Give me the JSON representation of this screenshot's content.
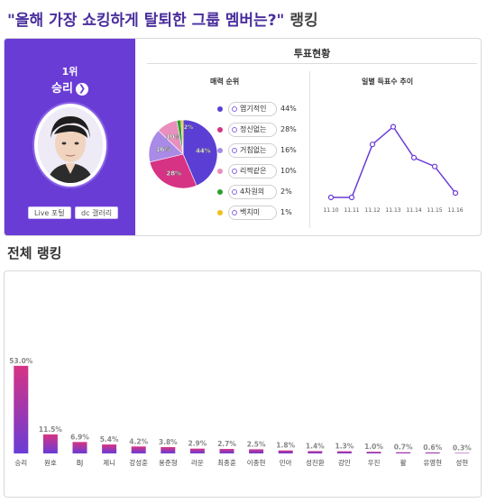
{
  "page": {
    "title": "\"올해 가장 쇼킹하게 탈퇴한 그룹 멤버는?\"",
    "title_suffix": "랭킹"
  },
  "winner": {
    "rank_label": "1위",
    "name": "승리",
    "live_button": "Live 포털",
    "gallery_button": "dc 갤러리"
  },
  "vote_status": {
    "title": "투표현황",
    "charm_title": "매력 순위",
    "daily_title": "일별 득표수 추이"
  },
  "charm": {
    "items": [
      {
        "label": "엽기적인",
        "pct": 44,
        "pct_label": "44%",
        "color": "#5b3fd4"
      },
      {
        "label": "정신없는",
        "pct": 28,
        "pct_label": "28%",
        "color": "#d63384"
      },
      {
        "label": "거침없는",
        "pct": 16,
        "pct_label": "16%",
        "color": "#a98ae6"
      },
      {
        "label": "리짝같은",
        "pct": 10,
        "pct_label": "10%",
        "color": "#e98fbd"
      },
      {
        "label": "4차원의",
        "pct": 2,
        "pct_label": "2%",
        "color": "#2ca02c"
      },
      {
        "label": "백치미",
        "pct": 1,
        "pct_label": "1%",
        "color": "#f2c014"
      }
    ],
    "slice_labels": [
      "44%",
      "28%",
      "16%",
      "10%",
      "2%",
      "1%"
    ]
  },
  "daily": {
    "dates": [
      "11.10",
      "11.11",
      "11.12",
      "11.13",
      "11.14",
      "11.15",
      "11.16"
    ],
    "values": [
      0,
      0,
      60,
      80,
      45,
      35,
      5
    ],
    "ylim": [
      0,
      100
    ]
  },
  "ranking": {
    "title": "전체 랭킹",
    "gradient_top": "#d63384",
    "gradient_bottom": "#6a3cd6"
  },
  "chart_data": {
    "type": "bar",
    "title": "",
    "categories": [
      "승리",
      "원호",
      "BJ",
      "제니",
      "강성훈",
      "용준형",
      "라운",
      "최종훈",
      "이종현",
      "민아",
      "성진환",
      "강인",
      "우진",
      "활",
      "유영현",
      "성현"
    ],
    "values": [
      53.0,
      11.5,
      6.9,
      5.4,
      4.2,
      3.8,
      2.9,
      2.7,
      2.5,
      1.8,
      1.4,
      1.3,
      1.0,
      0.7,
      0.6,
      0.3
    ],
    "value_labels": [
      "53.0%",
      "11.5%",
      "6.9%",
      "5.4%",
      "4.2%",
      "3.8%",
      "2.9%",
      "2.7%",
      "2.5%",
      "1.8%",
      "1.4%",
      "1.3%",
      "1.0%",
      "0.7%",
      "0.6%",
      "0.3%"
    ],
    "xlabel": "",
    "ylabel": "",
    "ylim": [
      0,
      60
    ]
  }
}
